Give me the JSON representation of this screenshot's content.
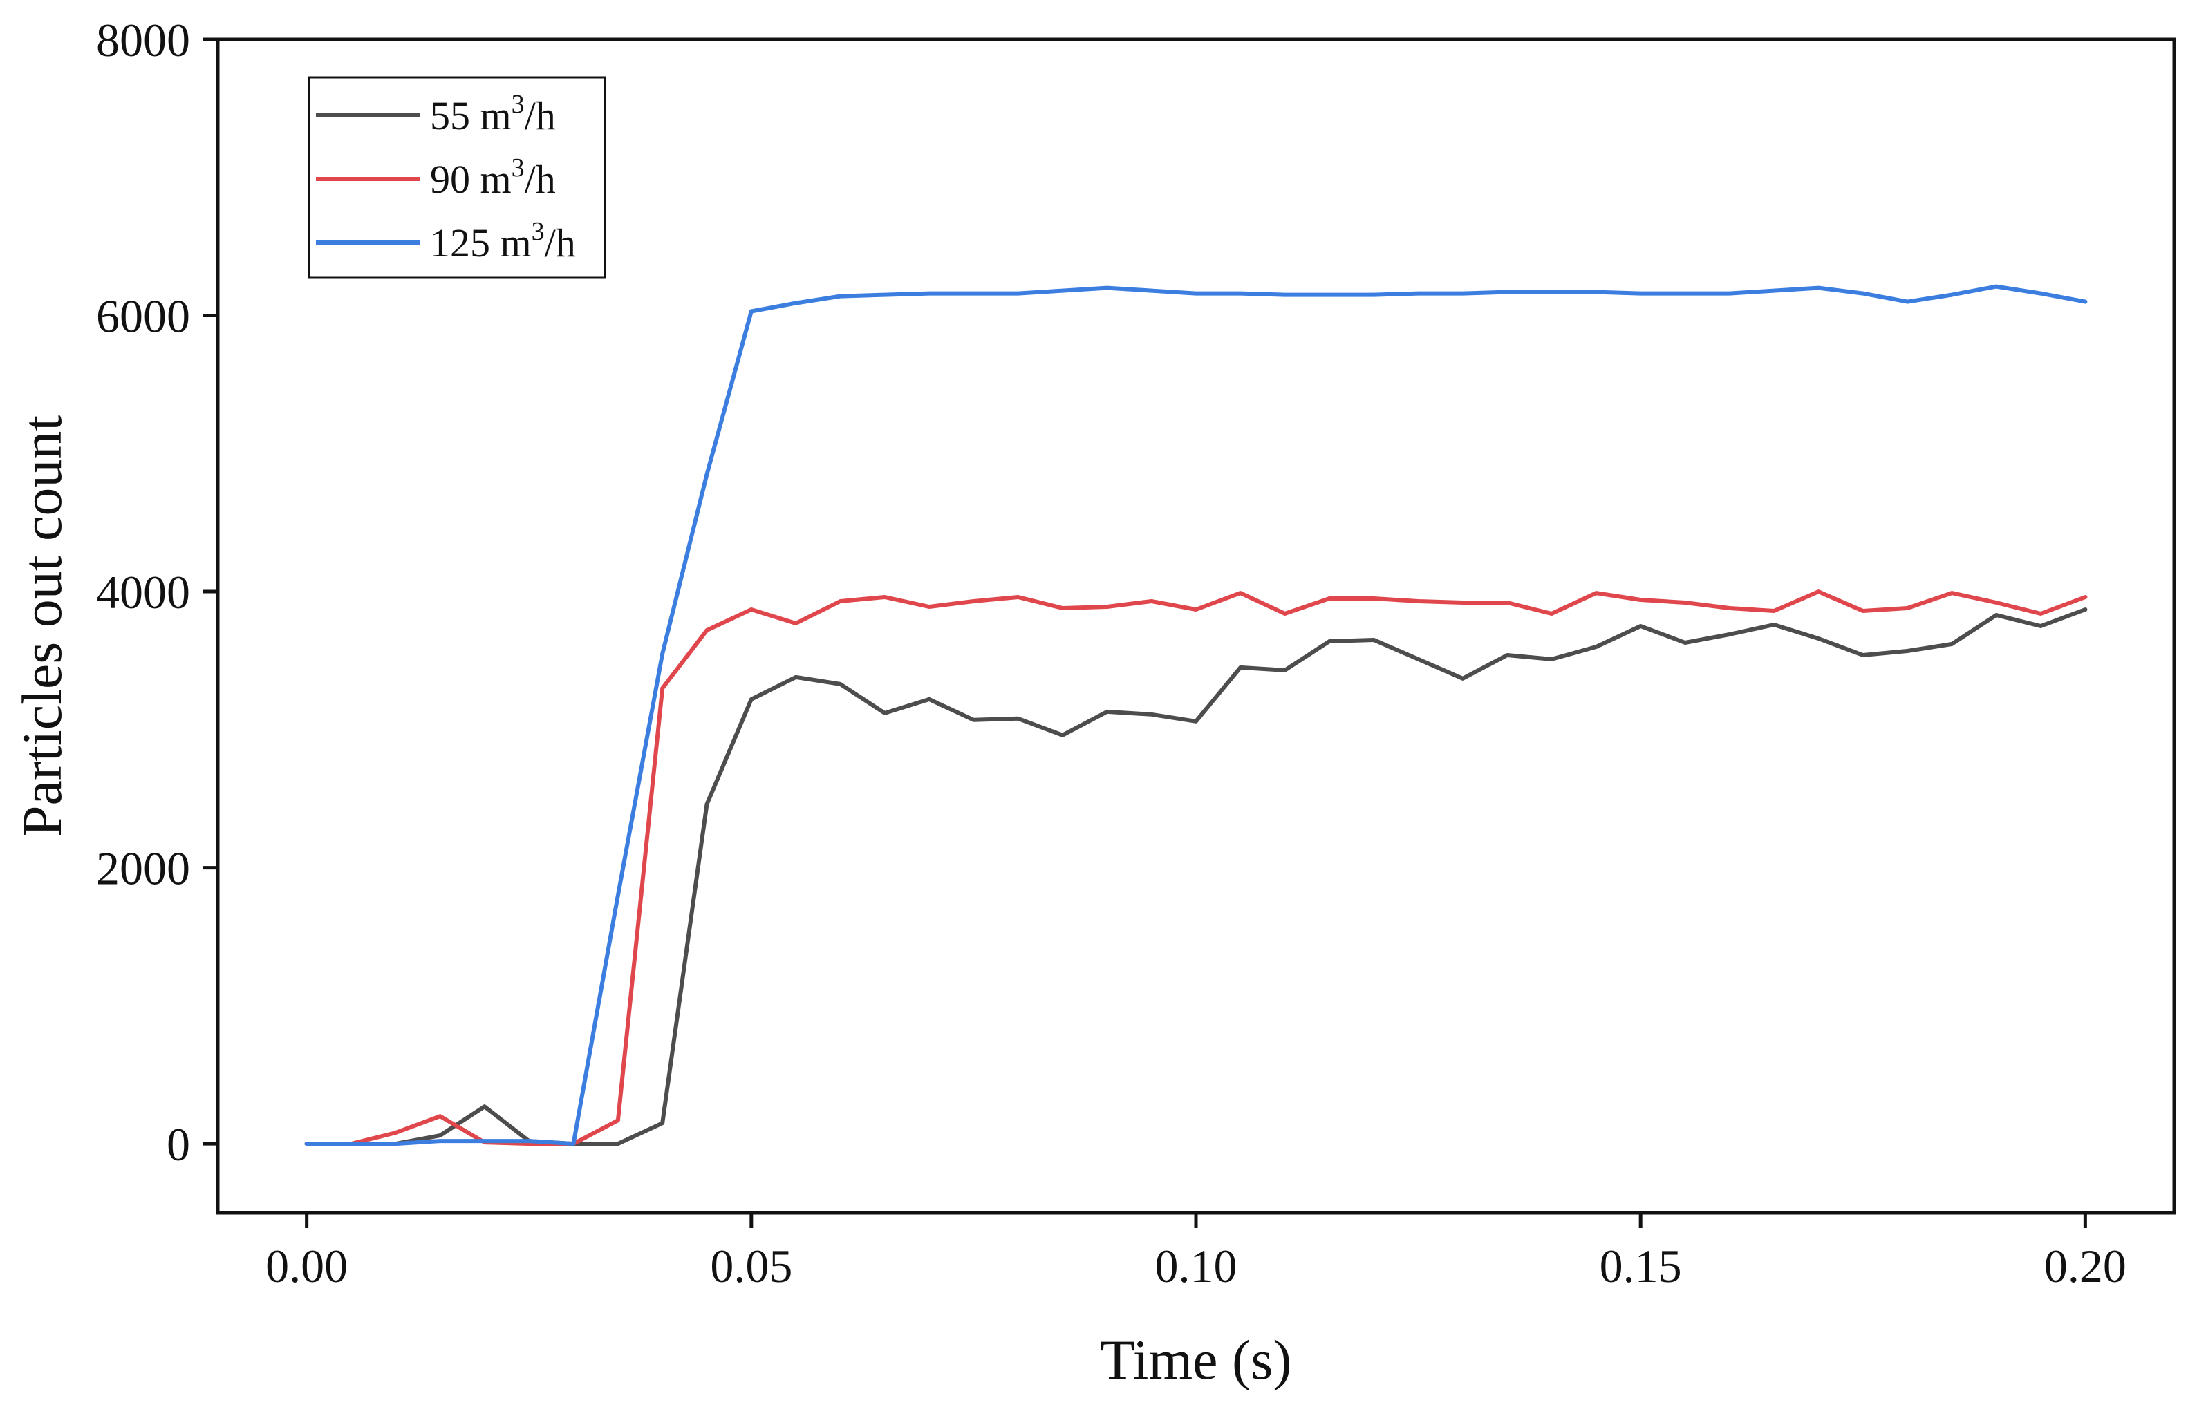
{
  "chart_data": {
    "type": "line",
    "title": "",
    "xlabel": "Time (s)",
    "ylabel": "Particles out count",
    "xlim": [
      -0.01,
      0.21
    ],
    "ylim": [
      -500,
      8000
    ],
    "xticks": [
      0.0,
      0.05,
      0.1,
      0.15,
      0.2
    ],
    "xtick_labels": [
      "0.00",
      "0.05",
      "0.10",
      "0.15",
      "0.20"
    ],
    "yticks": [
      0,
      2000,
      4000,
      6000,
      8000
    ],
    "ytick_labels": [
      "0",
      "2000",
      "4000",
      "6000",
      "8000"
    ],
    "grid": false,
    "legend_position": "top-left",
    "x": [
      0.0,
      0.005,
      0.01,
      0.015,
      0.02,
      0.025,
      0.03,
      0.035,
      0.04,
      0.045,
      0.05,
      0.055,
      0.06,
      0.065,
      0.07,
      0.075,
      0.08,
      0.085,
      0.09,
      0.095,
      0.1,
      0.105,
      0.11,
      0.115,
      0.12,
      0.125,
      0.13,
      0.135,
      0.14,
      0.145,
      0.15,
      0.155,
      0.16,
      0.165,
      0.17,
      0.175,
      0.18,
      0.185,
      0.19,
      0.195,
      0.2
    ],
    "series": [
      {
        "name": "55 m³/h",
        "legend_base": "55 m",
        "legend_sup": "3",
        "legend_tail": "/h",
        "color": "#4d4d4d",
        "values": [
          0,
          0,
          0,
          60,
          270,
          20,
          0,
          0,
          150,
          2460,
          3220,
          3380,
          3330,
          3120,
          3220,
          3070,
          3080,
          2960,
          3130,
          3110,
          3060,
          3450,
          3430,
          3640,
          3650,
          3510,
          3370,
          3540,
          3510,
          3600,
          3750,
          3630,
          3690,
          3760,
          3660,
          3540,
          3570,
          3620,
          3830,
          3750,
          3870
        ]
      },
      {
        "name": "90 m³/h",
        "legend_base": "90 m",
        "legend_sup": "3",
        "legend_tail": "/h",
        "color": "#e0474c",
        "values": [
          0,
          0,
          80,
          200,
          10,
          0,
          0,
          170,
          3300,
          3720,
          3870,
          3770,
          3930,
          3960,
          3890,
          3930,
          3960,
          3880,
          3890,
          3930,
          3870,
          3990,
          3840,
          3950,
          3950,
          3930,
          3920,
          3920,
          3840,
          3990,
          3940,
          3920,
          3880,
          3860,
          4000,
          3860,
          3880,
          3990,
          3920,
          3840,
          3960
        ]
      },
      {
        "name": "125 m³/h",
        "legend_base": "125 m",
        "legend_sup": "3",
        "legend_tail": "/h",
        "color": "#3b7ee0",
        "values": [
          0,
          0,
          0,
          20,
          20,
          20,
          0,
          1800,
          3550,
          4850,
          6030,
          6090,
          6140,
          6150,
          6160,
          6160,
          6160,
          6180,
          6200,
          6180,
          6160,
          6160,
          6150,
          6150,
          6150,
          6160,
          6160,
          6170,
          6170,
          6170,
          6160,
          6160,
          6160,
          6180,
          6200,
          6160,
          6100,
          6150,
          6210,
          6160,
          6100
        ]
      }
    ]
  }
}
